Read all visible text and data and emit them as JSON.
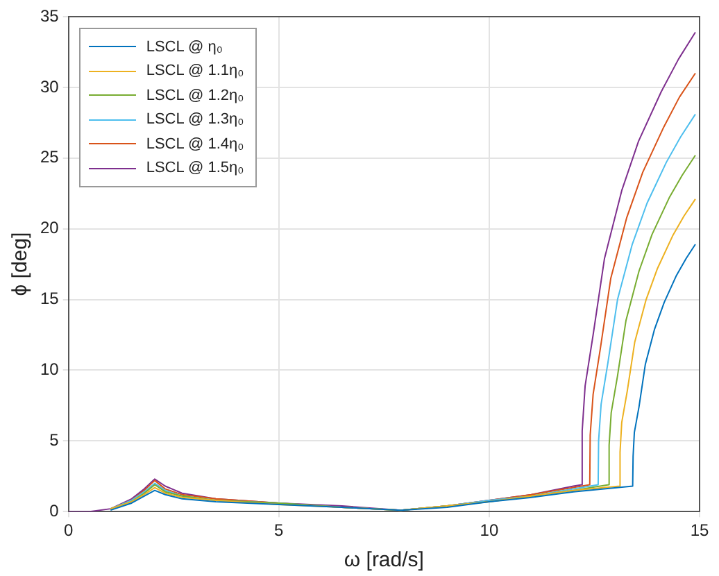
{
  "chart_data": {
    "type": "line",
    "xlabel": "ω [rad/s]",
    "ylabel": "ϕ [deg]",
    "xlim": [
      0,
      15
    ],
    "xticks": [
      0,
      5,
      10,
      15
    ],
    "ylim": [
      0,
      35
    ],
    "yticks": [
      0,
      5,
      10,
      15,
      20,
      25,
      30,
      35
    ],
    "grid": true,
    "legend": "top left",
    "marker": "none",
    "line_style": "solid",
    "series": [
      {
        "name": "LSCL @ η₀",
        "color": "#0072bd",
        "x": [
          1,
          1.5,
          1.8,
          2.05,
          2.3,
          2.7,
          3.5,
          5,
          6.5,
          7.9,
          9,
          10,
          11,
          12,
          13.41,
          13.42,
          13.45,
          13.56,
          13.71,
          13.93,
          14.16,
          14.45,
          14.68,
          14.9
        ],
        "values": [
          0.1,
          0.6,
          1.1,
          1.5,
          1.2,
          0.9,
          0.7,
          0.5,
          0.3,
          0.1,
          0.3,
          0.7,
          1.0,
          1.4,
          1.8,
          3.9,
          5.6,
          7.4,
          10.4,
          12.9,
          14.8,
          16.7,
          17.9,
          18.9
        ]
      },
      {
        "name": "LSCL @ 1.1η₀",
        "color": "#edb120",
        "x": [
          1,
          1.5,
          1.8,
          2.05,
          2.3,
          2.7,
          3.5,
          5,
          6.5,
          7.9,
          9,
          10,
          11,
          12,
          13.1,
          13.11,
          13.15,
          13.28,
          13.46,
          13.73,
          14.0,
          14.36,
          14.63,
          14.9
        ],
        "values": [
          0.2,
          0.7,
          1.2,
          1.7,
          1.3,
          1.0,
          0.8,
          0.5,
          0.3,
          0.1,
          0.4,
          0.7,
          1.1,
          1.5,
          1.8,
          4.2,
          6.3,
          8.5,
          12.0,
          15.0,
          17.2,
          19.5,
          20.9,
          22.1
        ]
      },
      {
        "name": "LSCL @ 1.2η₀",
        "color": "#77ac30",
        "x": [
          1,
          1.5,
          1.8,
          2.05,
          2.3,
          2.7,
          3.5,
          5,
          6.5,
          7.9,
          9,
          10,
          11,
          12,
          12.84,
          12.85,
          12.9,
          13.05,
          13.25,
          13.56,
          13.87,
          14.28,
          14.59,
          14.9
        ],
        "values": [
          0.2,
          0.7,
          1.3,
          1.9,
          1.4,
          1.1,
          0.8,
          0.6,
          0.3,
          0.1,
          0.4,
          0.7,
          1.1,
          1.5,
          1.9,
          4.7,
          7.0,
          9.6,
          13.5,
          17.0,
          19.6,
          22.2,
          23.8,
          25.2
        ]
      },
      {
        "name": "LSCL @ 1.3η₀",
        "color": "#4dbeee",
        "x": [
          1,
          1.5,
          1.8,
          2.05,
          2.3,
          2.7,
          3.5,
          5,
          6.5,
          7.9,
          9,
          10,
          11,
          12,
          12.59,
          12.6,
          12.66,
          12.82,
          13.05,
          13.4,
          13.75,
          14.21,
          14.55,
          14.9
        ],
        "values": [
          0.2,
          0.8,
          1.4,
          2.0,
          1.5,
          1.1,
          0.8,
          0.6,
          0.3,
          0.1,
          0.4,
          0.8,
          1.1,
          1.6,
          1.9,
          5.0,
          7.6,
          10.5,
          15.0,
          18.9,
          21.8,
          24.7,
          26.5,
          28.1
        ]
      },
      {
        "name": "LSCL @ 1.4η₀",
        "color": "#d95319",
        "x": [
          1,
          1.5,
          1.8,
          2.05,
          2.3,
          2.7,
          3.5,
          5,
          6.5,
          7.9,
          9,
          10,
          11,
          12,
          12.39,
          12.4,
          12.47,
          12.64,
          12.89,
          13.27,
          13.65,
          14.15,
          14.52,
          14.9
        ],
        "values": [
          0.2,
          0.8,
          1.5,
          2.2,
          1.6,
          1.2,
          0.9,
          0.6,
          0.3,
          0.1,
          0.4,
          0.8,
          1.2,
          1.7,
          1.9,
          5.4,
          8.3,
          11.5,
          16.5,
          20.8,
          24.0,
          27.2,
          29.3,
          31.0
        ]
      },
      {
        "name": "LSCL @ 1.5η₀",
        "color": "#7e2f8e",
        "x": [
          0,
          0.5,
          1,
          1.5,
          1.8,
          2.05,
          2.3,
          2.7,
          3.5,
          5,
          6.5,
          7.9,
          9,
          10,
          11,
          12,
          12.2,
          12.21,
          12.28,
          12.47,
          12.74,
          13.15,
          13.55,
          14.09,
          14.5,
          14.9
        ],
        "values": [
          0,
          0.0,
          0.2,
          0.9,
          1.6,
          2.3,
          1.8,
          1.3,
          0.9,
          0.6,
          0.4,
          0.1,
          0.4,
          0.8,
          1.2,
          1.8,
          1.9,
          5.7,
          8.9,
          12.5,
          17.9,
          22.7,
          26.2,
          29.7,
          32.0,
          33.9
        ]
      }
    ]
  }
}
